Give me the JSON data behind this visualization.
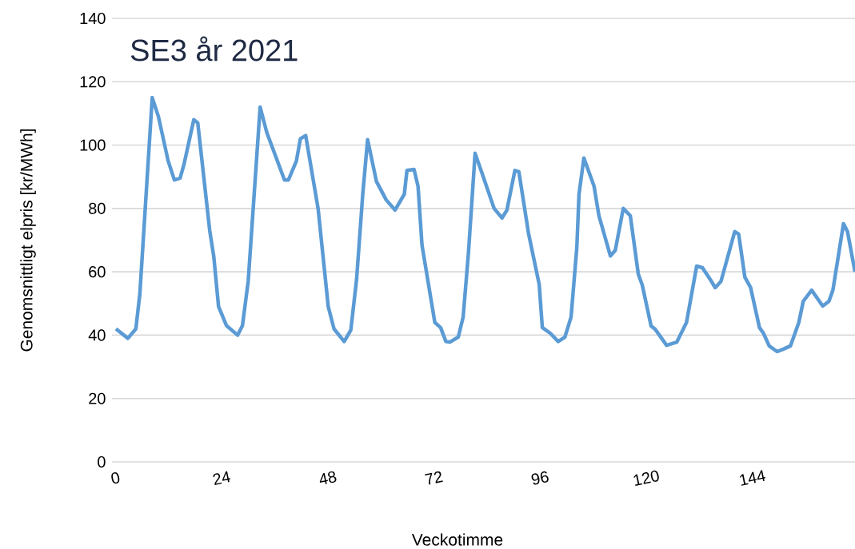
{
  "chart_data": {
    "type": "line",
    "title": "SE3 år 2021",
    "xlabel": "Veckotimme",
    "ylabel": "Genomsnittligt elpris [kr/MWh]",
    "x": [
      0.9,
      3.6,
      5.4,
      6.3,
      9.1,
      10.5,
      12.7,
      14.1,
      15.4,
      16.3,
      18.5,
      19.4,
      22.1,
      23,
      24.1,
      25.9,
      28.4,
      29.5,
      30.8,
      33.5,
      35,
      36.6,
      39,
      39.9,
      41.7,
      42.6,
      43.8,
      46.6,
      48.9,
      50.2,
      52.5,
      54,
      55.3,
      56.7,
      57.8,
      59.8,
      62,
      64,
      66.1,
      66.7,
      68.3,
      69.2,
      70.1,
      73,
      74.3,
      75.5,
      76.4,
      78.3,
      79.4,
      80.6,
      82.1,
      83.7,
      86.4,
      88.2,
      89.3,
      91.1,
      92,
      94.2,
      96.6,
      97.3,
      99.1,
      100.9,
      102.4,
      103.8,
      105.1,
      105.6,
      106.7,
      109,
      110.1,
      112.7,
      113.8,
      115.6,
      117.2,
      119,
      119.9,
      121.9,
      122.8,
      125.4,
      127.7,
      129.9,
      132.2,
      133.5,
      135.3,
      136.4,
      137.7,
      140.8,
      141.7,
      143.1,
      144.4,
      146.4,
      147.3,
      148.6,
      150.4,
      151.8,
      153.4,
      155.3,
      156.3,
      158.2,
      160.7,
      162.1,
      163,
      165.4,
      166.3,
      168
    ],
    "values": [
      42,
      39,
      42,
      53,
      115,
      109,
      95,
      89,
      89.6,
      94,
      108,
      107,
      73,
      65,
      49,
      43,
      40,
      43,
      57,
      112,
      104,
      98,
      89,
      89,
      95,
      102,
      103,
      80,
      49,
      42,
      38,
      41.6,
      57.5,
      84.5,
      101.7,
      88.5,
      82.7,
      79.5,
      84.5,
      92,
      92.3,
      87,
      68.4,
      44,
      42.4,
      38,
      37.8,
      39.4,
      45.7,
      66,
      97.4,
      91,
      80,
      77,
      79.5,
      92,
      91.6,
      72,
      56,
      42.4,
      40.6,
      38,
      39.4,
      45.7,
      67.6,
      84.5,
      95.9,
      87,
      77.7,
      65,
      66.8,
      80,
      77.7,
      59.3,
      55.8,
      42.9,
      41.9,
      36.8,
      37.8,
      44,
      61.8,
      61.3,
      57.5,
      55,
      57,
      72.7,
      71.9,
      58.3,
      55,
      42.4,
      40.6,
      36.6,
      34.8,
      35.6,
      36.6,
      44,
      50.7,
      54.2,
      49.2,
      50.7,
      54.2,
      75.2,
      72.7,
      60
    ],
    "color": "#5b9bd5",
    "xlim": [
      0,
      168
    ],
    "ylim": [
      0,
      140
    ],
    "xticks": [
      0,
      24,
      48,
      72,
      96,
      120,
      144
    ],
    "yticks": [
      0,
      20,
      40,
      60,
      80,
      100,
      120,
      140
    ],
    "grid": "y"
  }
}
